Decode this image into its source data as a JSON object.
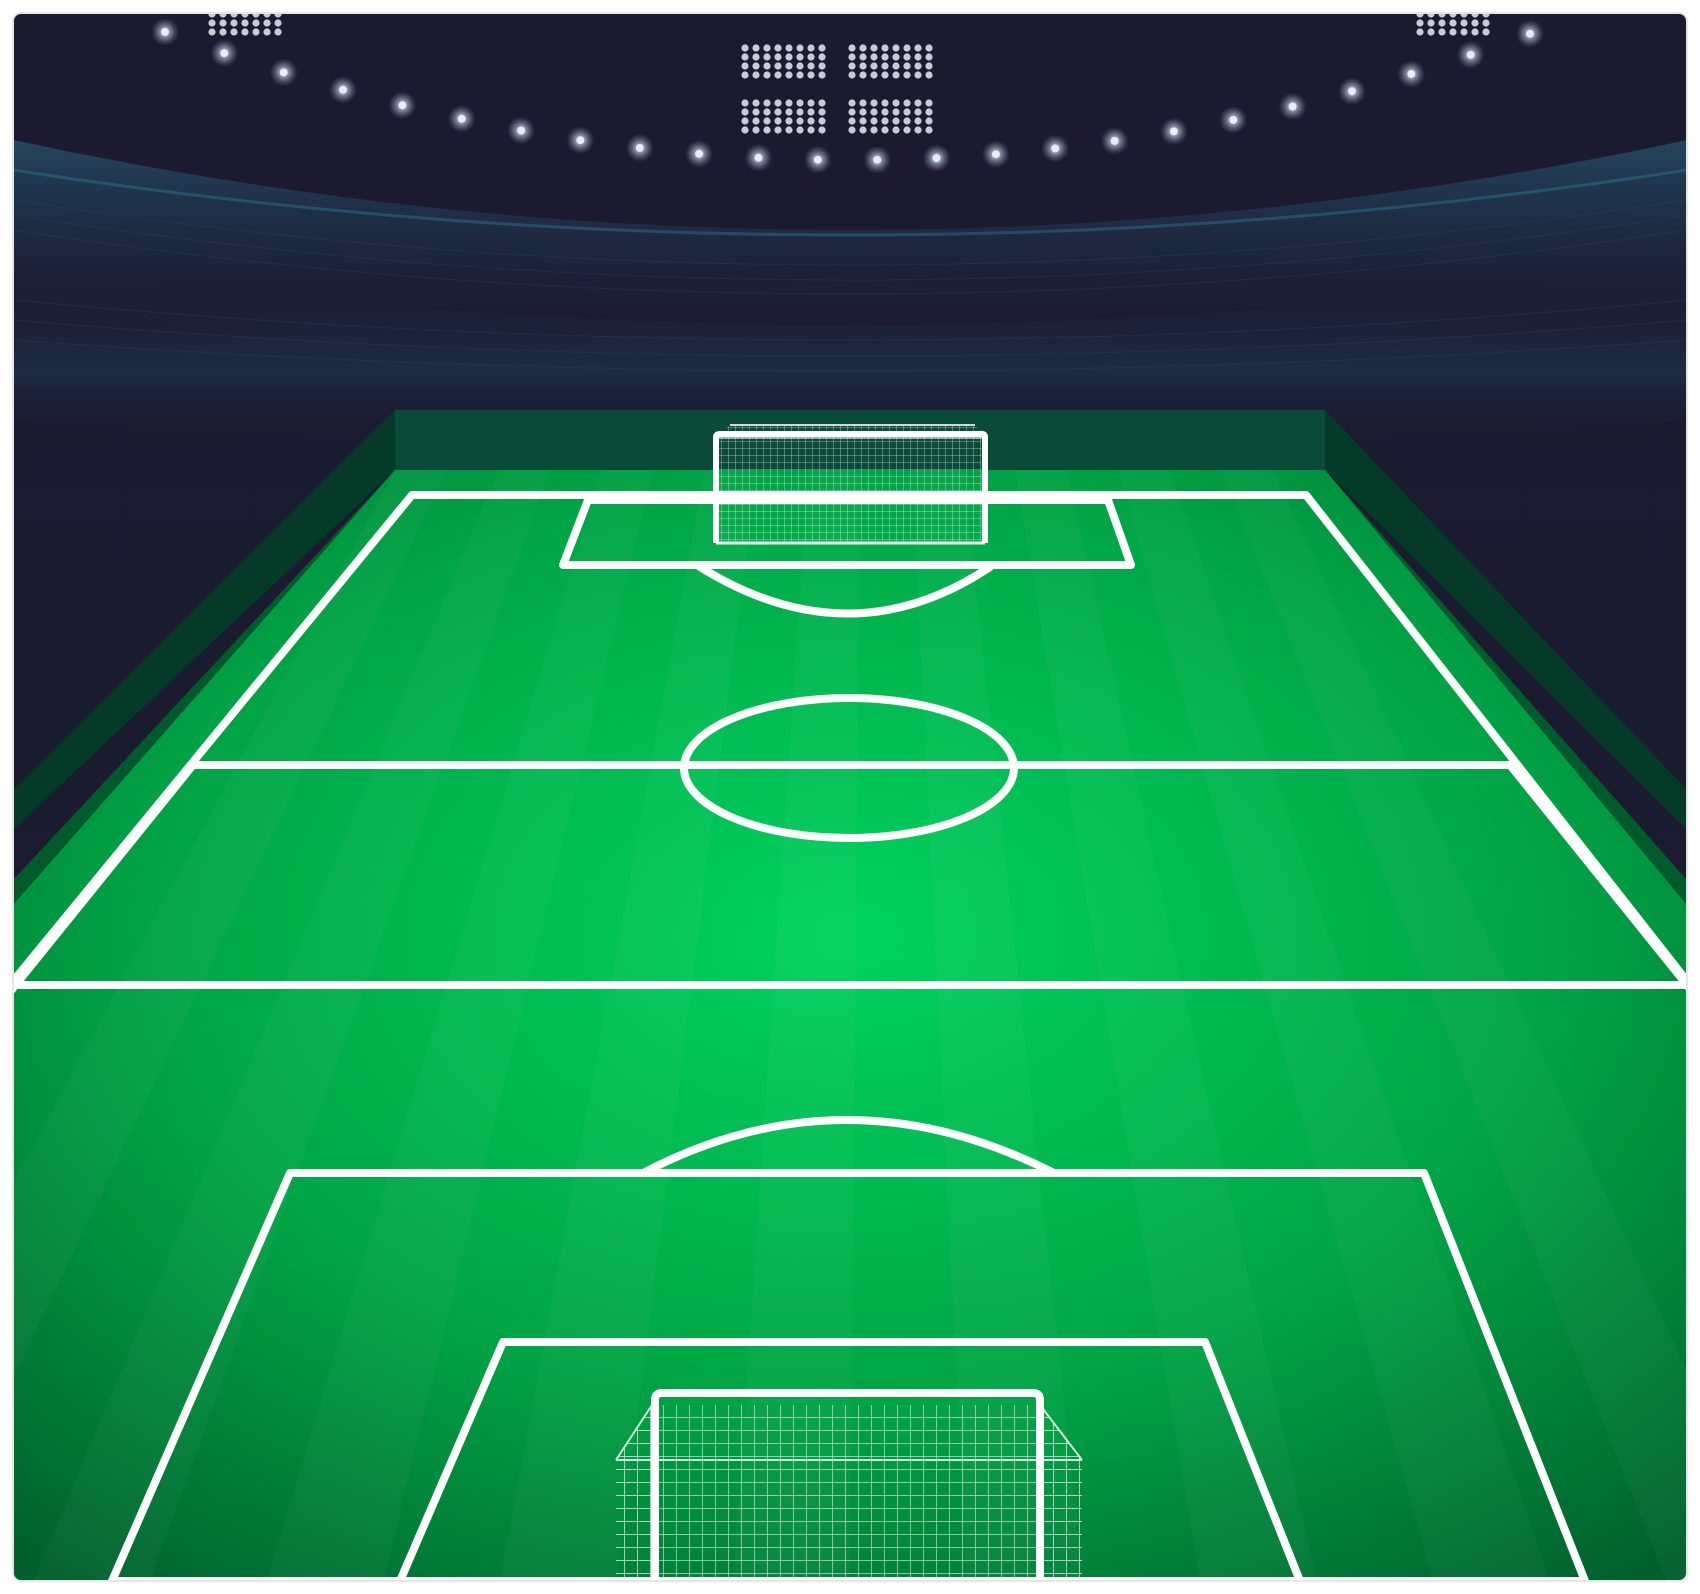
{
  "scene": {
    "name": "soccer-stadium-illustration",
    "colors": {
      "frame": "#ffffff",
      "sky_top": "#1c1a2e",
      "sky_bottom": "#1b2a44",
      "stand_glow": "#2a6a86",
      "floodlight": "#e8ecf4",
      "pitch_center": "#00d35f",
      "pitch_edge": "#005f2c",
      "wall_top": "#0a4a38",
      "wall_side": "#023824",
      "lines": "#ffffff",
      "net": "#ffffff"
    },
    "icons": {
      "top_floodlights": "floodlight-icon",
      "light_arc": "stadium-light-icon",
      "far_goal": "goal-net-icon",
      "near_goal": "goal-net-icon"
    }
  }
}
